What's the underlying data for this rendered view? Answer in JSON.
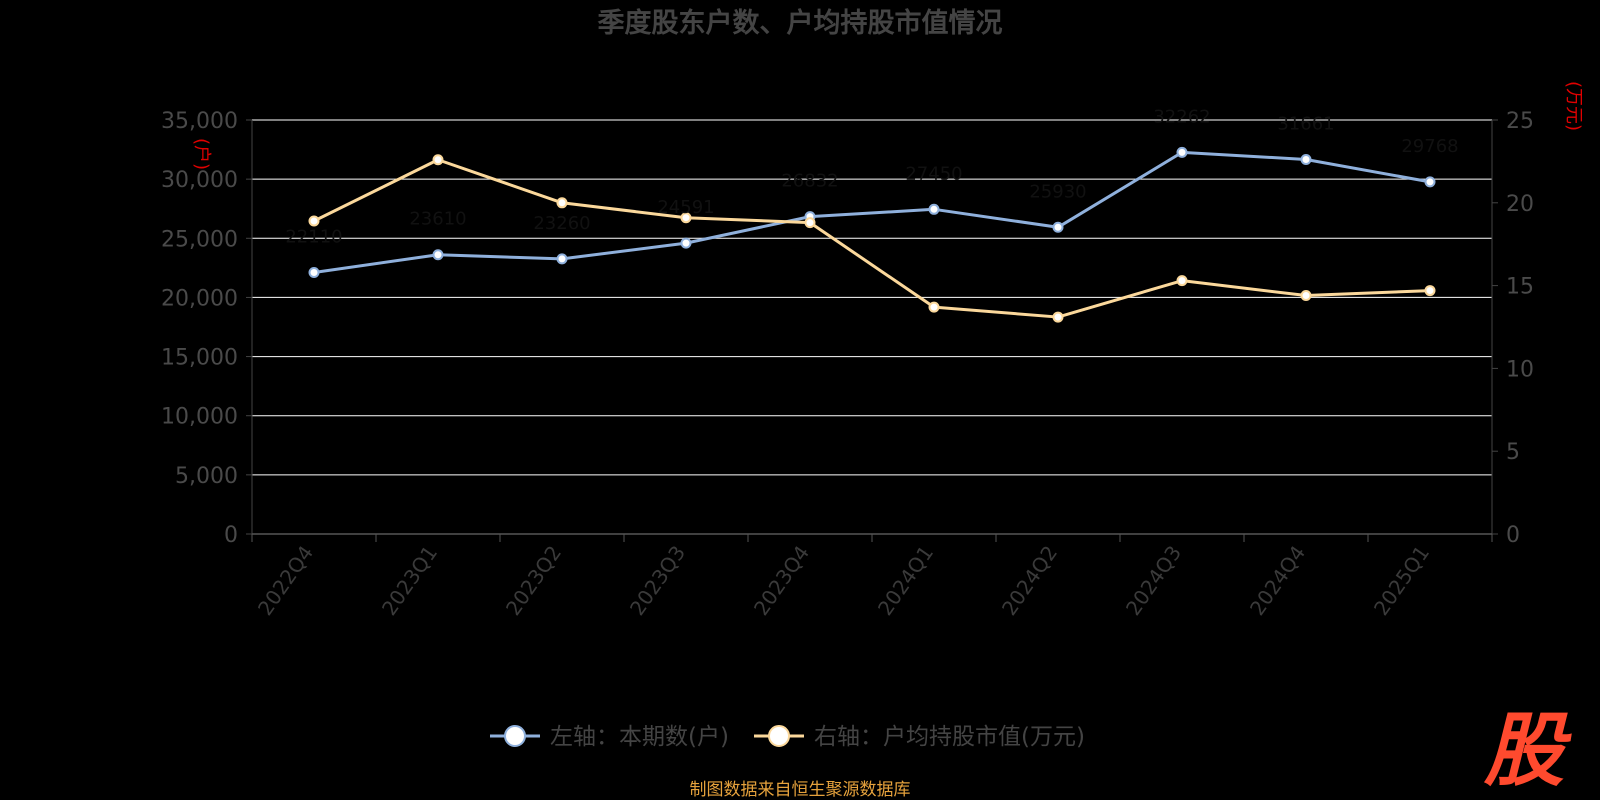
{
  "chart_data": {
    "type": "line",
    "title": "季度股东户数、户均持股市值情况",
    "categories": [
      "2022Q4",
      "2023Q1",
      "2023Q2",
      "2023Q3",
      "2023Q4",
      "2024Q1",
      "2024Q2",
      "2024Q3",
      "2024Q4",
      "2025Q1"
    ],
    "left_axis": {
      "unit": "(户)",
      "ylim": [
        0,
        35000
      ],
      "ticks": [
        "0",
        "5,000",
        "10,000",
        "15,000",
        "20,000",
        "25,000",
        "30,000",
        "35,000"
      ]
    },
    "right_axis": {
      "unit": "(万元)",
      "ylim": [
        0,
        25
      ],
      "ticks": [
        "0",
        "5",
        "10",
        "15",
        "20",
        "25"
      ]
    },
    "series": [
      {
        "name": "左轴：本期数(户)",
        "axis": "left",
        "color": "#8fb0dc",
        "values": [
          22110,
          23610,
          23260,
          24591,
          26832,
          27450,
          25930,
          32262,
          31661,
          29768
        ]
      },
      {
        "name": "右轴：户均持股市值(万元)",
        "axis": "right",
        "color": "#fbd89b",
        "values": [
          18.9,
          22.6,
          20.0,
          19.1,
          18.8,
          13.7,
          13.1,
          15.3,
          14.4,
          14.7
        ]
      }
    ],
    "grid": true,
    "legend_position": "bottom"
  },
  "source_note": "制图数据来自恒生聚源数据库",
  "logo_text": "股",
  "colors": {
    "background": "#000000",
    "grid": "#ffffff",
    "unit_text": "#e00000",
    "logo": "#ff4a2e",
    "source": "#e6a23c"
  }
}
